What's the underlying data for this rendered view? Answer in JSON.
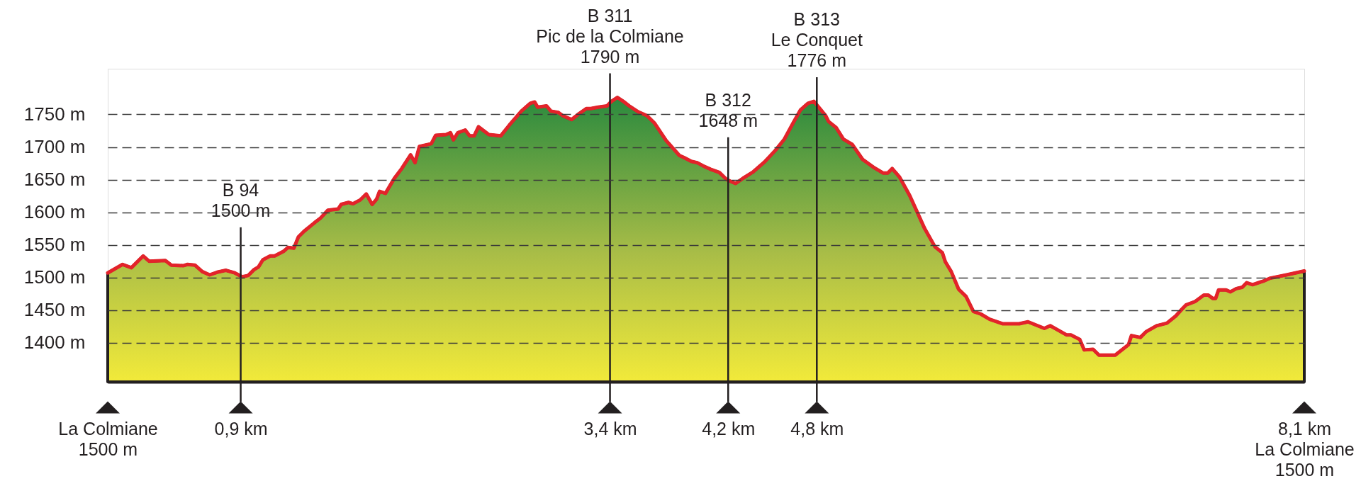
{
  "chart_data": {
    "type": "area",
    "x": [
      0.0,
      0.1,
      0.16,
      0.24,
      0.28,
      0.39,
      0.43,
      0.51,
      0.54,
      0.59,
      0.64,
      0.69,
      0.74,
      0.8,
      0.86,
      0.91,
      0.95,
      0.99,
      1.02,
      1.05,
      1.1,
      1.13,
      1.19,
      1.22,
      1.26,
      1.29,
      1.33,
      1.4,
      1.44,
      1.49,
      1.56,
      1.58,
      1.63,
      1.66,
      1.71,
      1.75,
      1.79,
      1.82,
      1.84,
      1.88,
      1.94,
      1.99,
      2.05,
      2.08,
      2.11,
      2.19,
      2.22,
      2.29,
      2.32,
      2.34,
      2.37,
      2.42,
      2.45,
      2.48,
      2.51,
      2.58,
      2.66,
      2.72,
      2.8,
      2.86,
      2.89,
      2.91,
      2.97,
      3.0,
      3.05,
      3.08,
      3.14,
      3.19,
      3.24,
      3.27,
      3.32,
      3.38,
      3.41,
      3.45,
      3.49,
      3.53,
      3.59,
      3.65,
      3.7,
      3.78,
      3.87,
      3.9,
      3.95,
      3.99,
      4.04,
      4.08,
      4.14,
      4.19,
      4.25,
      4.3,
      4.37,
      4.45,
      4.52,
      4.58,
      4.64,
      4.69,
      4.74,
      4.78,
      4.82,
      4.86,
      4.88,
      4.93,
      4.98,
      5.04,
      5.11,
      5.19,
      5.25,
      5.28,
      5.31,
      5.36,
      5.43,
      5.48,
      5.53,
      5.6,
      5.65,
      5.67,
      5.71,
      5.76,
      5.81,
      5.86,
      5.91,
      5.97,
      6.06,
      6.17,
      6.23,
      6.34,
      6.38,
      6.42,
      6.49,
      6.52,
      6.58,
      6.61,
      6.67,
      6.71,
      6.82,
      6.91,
      6.93,
      6.99,
      7.03,
      7.1,
      7.17,
      7.23,
      7.27,
      7.3,
      7.36,
      7.42,
      7.45,
      7.48,
      7.5,
      7.52,
      7.57,
      7.6,
      7.64,
      7.68,
      7.71,
      7.75,
      7.83,
      7.87,
      7.98,
      8.1
    ],
    "series": [
      {
        "color": "#e3232a",
        "values": [
          1507,
          1520,
          1515,
          1533,
          1525,
          1526,
          1519,
          1518,
          1520,
          1519,
          1509,
          1504,
          1508,
          1511,
          1507,
          1501,
          1503,
          1512,
          1516,
          1527,
          1533,
          1533,
          1540,
          1546,
          1545,
          1562,
          1571,
          1584,
          1591,
          1603,
          1605,
          1612,
          1615,
          1613,
          1619,
          1628,
          1612,
          1620,
          1632,
          1629,
          1652,
          1667,
          1688,
          1676,
          1701,
          1705,
          1718,
          1719,
          1722,
          1711,
          1722,
          1726,
          1717,
          1717,
          1731,
          1719,
          1717,
          1734,
          1755,
          1767,
          1769,
          1761,
          1763,
          1755,
          1753,
          1748,
          1742,
          1751,
          1759,
          1759,
          1761,
          1763,
          1770,
          1776,
          1770,
          1763,
          1754,
          1748,
          1737,
          1710,
          1687,
          1684,
          1678,
          1676,
          1670,
          1666,
          1661,
          1650,
          1644,
          1652,
          1662,
          1678,
          1695,
          1712,
          1737,
          1757,
          1767,
          1770,
          1759,
          1748,
          1739,
          1730,
          1712,
          1704,
          1681,
          1668,
          1660,
          1660,
          1667,
          1654,
          1625,
          1600,
          1575,
          1547,
          1538,
          1524,
          1509,
          1482,
          1471,
          1448,
          1444,
          1436,
          1429,
          1429,
          1432,
          1422,
          1426,
          1421,
          1412,
          1412,
          1405,
          1389,
          1390,
          1381,
          1381,
          1397,
          1411,
          1408,
          1417,
          1426,
          1430,
          1441,
          1451,
          1458,
          1463,
          1473,
          1473,
          1468,
          1468,
          1481,
          1481,
          1478,
          1483,
          1485,
          1492,
          1489,
          1495,
          1499,
          1504,
          1510
        ]
      }
    ],
    "xlim": [
      0,
      8.1
    ],
    "xticks": [
      {
        "value": 0,
        "label": "La Colmiane\n1500 m"
      },
      {
        "value": 0.9,
        "label": "0,9 km"
      },
      {
        "value": 3.4,
        "label": "3,4 km"
      },
      {
        "value": 4.2,
        "label": "4,2 km"
      },
      {
        "value": 4.8,
        "label": "4,8 km"
      },
      {
        "value": 8.1,
        "label": "8,1 km\nLa Colmiane\n1500 m"
      }
    ],
    "ylim": [
      1340,
      1820
    ],
    "yticks": [
      {
        "value": 1400,
        "label": "1400 m"
      },
      {
        "value": 1450,
        "label": "1450 m"
      },
      {
        "value": 1500,
        "label": "1500 m"
      },
      {
        "value": 1550,
        "label": "1550 m"
      },
      {
        "value": 1600,
        "label": "1600 m"
      },
      {
        "value": 1650,
        "label": "1650 m"
      },
      {
        "value": 1700,
        "label": "1700 m"
      },
      {
        "value": 1750,
        "label": "1750 m"
      }
    ],
    "grid": "y",
    "ref_lines": [
      {
        "axis": "x",
        "value": 0.9,
        "label": "B 94\n1500 m",
        "color": "#231f20"
      },
      {
        "axis": "x",
        "value": 3.4,
        "label": "B 311\nPic de la Colmiane\n1790 m",
        "color": "#231f20"
      },
      {
        "axis": "x",
        "value": 4.2,
        "label": "B 312\n1648 m",
        "color": "#231f20"
      },
      {
        "axis": "x",
        "value": 4.8,
        "label": "B 313\nLe Conquet\n1776 m",
        "color": "#231f20"
      }
    ]
  }
}
